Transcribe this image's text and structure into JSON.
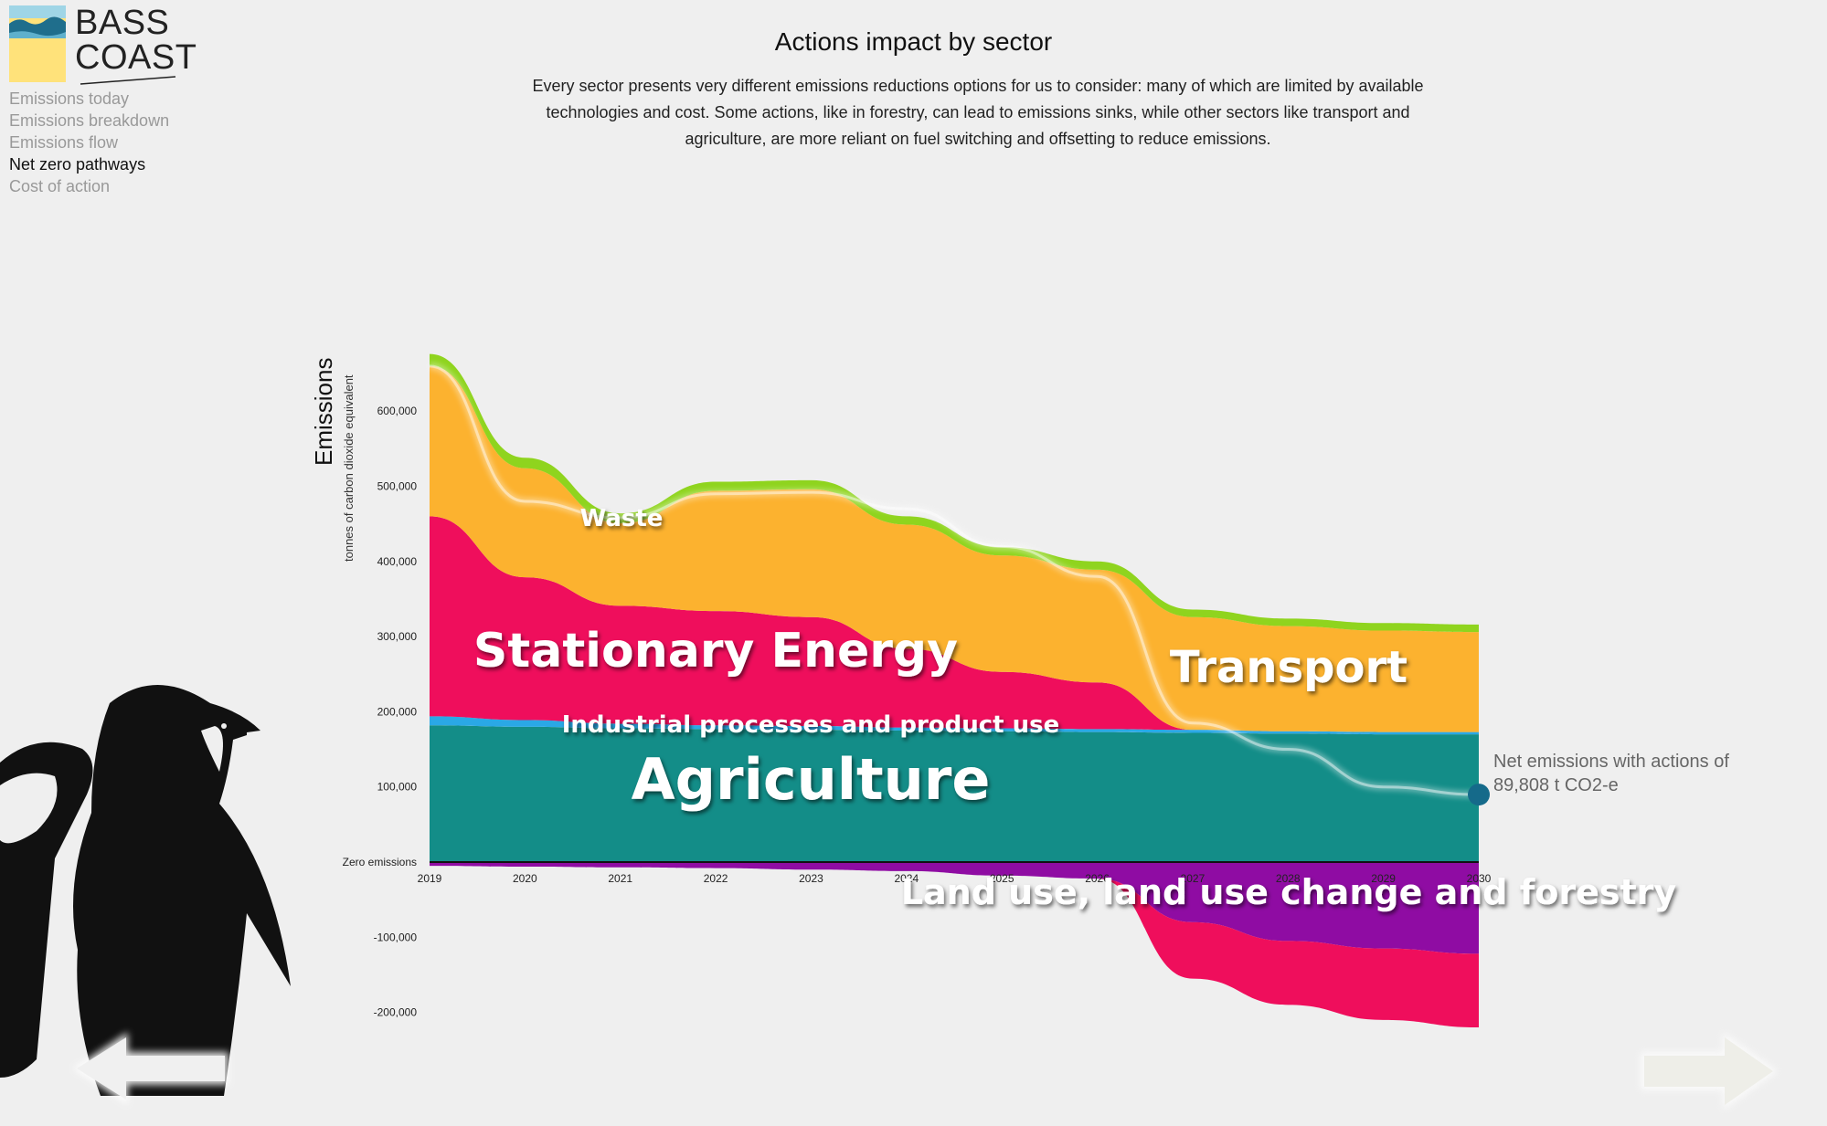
{
  "logo": {
    "line1": "BASS",
    "line2": "COAST"
  },
  "nav": {
    "items": [
      {
        "label": "Emissions today",
        "active": false
      },
      {
        "label": "Emissions breakdown",
        "active": false
      },
      {
        "label": "Emissions flow",
        "active": false
      },
      {
        "label": "Net zero pathways",
        "active": true
      },
      {
        "label": "Cost of action",
        "active": false
      }
    ]
  },
  "header": {
    "title": "Actions impact by sector",
    "description": "Every sector presents very different emissions reductions options for us to consider: many of which are limited by available technologies and cost. Some actions, like in forestry, can lead to emissions sinks, while other sectors like transport and agriculture, are more reliant on fuel switching and offsetting to reduce emissions."
  },
  "chart_data": {
    "type": "area",
    "title": "Actions impact by sector",
    "ylabel": "Emissions",
    "ylabel_sub": "tonnes of carbon dioxide equivalent",
    "zero_label": "Zero emissions",
    "x": [
      2019,
      2020,
      2021,
      2022,
      2023,
      2024,
      2025,
      2026,
      2027,
      2028,
      2029,
      2030
    ],
    "ylim": [
      -250000,
      700000
    ],
    "y_ticks": [
      {
        "value": 600000,
        "label": "600,000"
      },
      {
        "value": 500000,
        "label": "500,000"
      },
      {
        "value": 400000,
        "label": "400,000"
      },
      {
        "value": 300000,
        "label": "300,000"
      },
      {
        "value": 200000,
        "label": "200,000"
      },
      {
        "value": 100000,
        "label": "100,000"
      },
      {
        "value": -100000,
        "label": "-100,000"
      },
      {
        "value": -200000,
        "label": "-200,000"
      }
    ],
    "positive_series": [
      {
        "name": "Agriculture",
        "color": "#138d88",
        "values": [
          182000,
          180000,
          178000,
          177000,
          176000,
          175000,
          174000,
          173000,
          172000,
          171000,
          170000,
          170000
        ]
      },
      {
        "name": "Industrial processes and product use",
        "color": "#2aa8e6",
        "values": [
          12000,
          9000,
          6000,
          5000,
          5000,
          4000,
          4000,
          4000,
          4000,
          3000,
          3000,
          3000
        ]
      },
      {
        "name": "Stationary Energy",
        "color": "#ef0e5c",
        "values": [
          266000,
          190000,
          157000,
          152000,
          145000,
          105000,
          75000,
          62000,
          0,
          0,
          0,
          0
        ]
      },
      {
        "name": "Transport",
        "color": "#fcb22f",
        "values": [
          200000,
          145000,
          110000,
          160000,
          170000,
          165000,
          155000,
          150000,
          150000,
          140000,
          135000,
          133000
        ]
      },
      {
        "name": "Waste",
        "color": "#8fd41e",
        "values": [
          16000,
          14000,
          13000,
          12000,
          12000,
          11000,
          11000,
          11000,
          10000,
          10000,
          10000,
          10000
        ]
      }
    ],
    "negative_series": [
      {
        "name": "Land use, land use change and forestry",
        "color": "#8f0ca3",
        "values": [
          -5000,
          -6000,
          -7000,
          -8000,
          -10000,
          -12000,
          -18000,
          -22000,
          -80000,
          -105000,
          -115000,
          -122000
        ]
      },
      {
        "name": "Stationary Energy",
        "color": "#ef0e5c",
        "values": [
          0,
          0,
          0,
          0,
          0,
          0,
          0,
          0,
          -75000,
          -85000,
          -95000,
          -98000
        ]
      }
    ],
    "net_line": {
      "values": [
        660000,
        480000,
        458000,
        490000,
        492000,
        470000,
        420000,
        380000,
        185000,
        150000,
        100000,
        89808
      ]
    },
    "annotation": "Net emissions with actions of 89,808 t CO2-e",
    "sector_labels": [
      {
        "text": "Waste",
        "size": "small"
      },
      {
        "text": "Stationary Energy",
        "size": "large"
      },
      {
        "text": "Industrial processes and product use",
        "size": "medium"
      },
      {
        "text": "Agriculture",
        "size": "xlarge"
      },
      {
        "text": "Transport",
        "size": "large"
      },
      {
        "text": "Land use, land use change and forestry",
        "size": "large"
      }
    ]
  }
}
